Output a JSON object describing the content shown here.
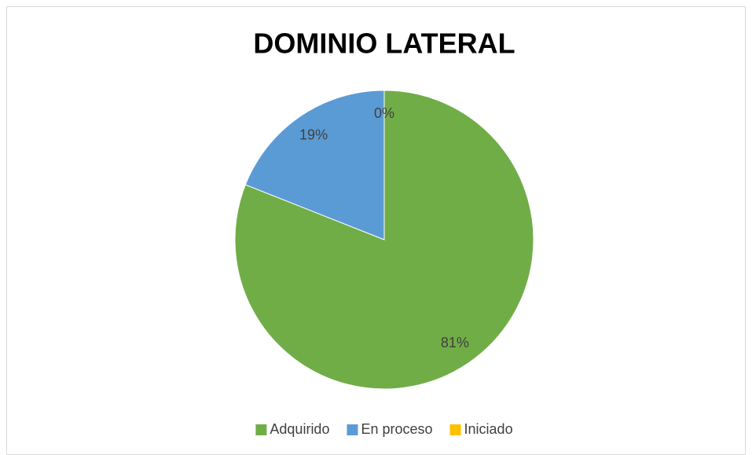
{
  "chart_data": {
    "type": "pie",
    "title": "DOMINIO LATERAL",
    "categories": [
      "Adquirido",
      "En proceso",
      "Iniciado"
    ],
    "values": [
      81,
      19,
      0
    ],
    "value_labels": [
      "81%",
      "19%",
      "0%"
    ],
    "colors": [
      "#70ad47",
      "#5b9bd5",
      "#ffc000"
    ],
    "legend": "bottom"
  }
}
